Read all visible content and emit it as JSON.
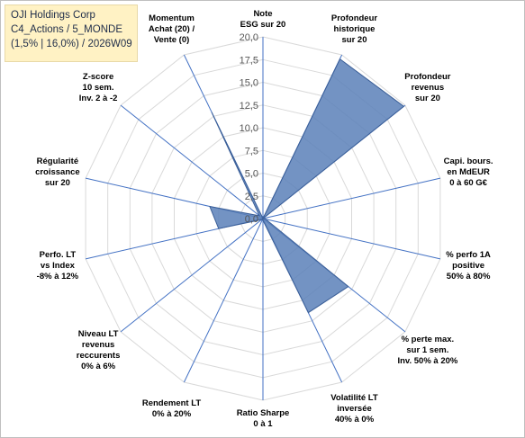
{
  "header": {
    "lines": [
      "OJI Holdings Corp",
      "C4_Actions / 5_MONDE",
      "(1,5% | 16,0%) / 2026W09"
    ]
  },
  "chart_data": {
    "type": "radar",
    "range": [
      0,
      20
    ],
    "tick_labels": [
      "0,0",
      "2,5",
      "5,0",
      "7,5",
      "10,0",
      "12,5",
      "15,0",
      "17,5",
      "20,0"
    ],
    "axes": [
      {
        "label": [
          "Note",
          "ESG sur 20"
        ]
      },
      {
        "label": [
          "Profondeur",
          "historique",
          "sur 20"
        ]
      },
      {
        "label": [
          "Profondeur",
          "revenus",
          "sur 20"
        ]
      },
      {
        "label": [
          "Capi. bours.",
          "en MdEUR",
          "0 à 60 G€"
        ]
      },
      {
        "label": [
          "% perfo 1A",
          "positive",
          "50% à 80%"
        ]
      },
      {
        "label": [
          "% perte max.",
          "sur 1 sem.",
          "Inv. 50% à 20%"
        ]
      },
      {
        "label": [
          "Volatilité LT",
          "inversée",
          "40% à 0%"
        ]
      },
      {
        "label": [
          "Ratio Sharpe",
          "0 à 1"
        ]
      },
      {
        "label": [
          "Rendement LT",
          "0% à 20%"
        ]
      },
      {
        "label": [
          "Niveau LT",
          "revenus",
          "reccurents",
          "0% à 6%"
        ]
      },
      {
        "label": [
          "Perfo. LT",
          "vs Index",
          "-8% à 12%"
        ]
      },
      {
        "label": [
          "Régularité",
          "croissance",
          "sur 20"
        ]
      },
      {
        "label": [
          "Z-score",
          "10 sem.",
          "Inv. 2 à -2"
        ]
      },
      {
        "label": [
          "Momentum",
          "Achat (20) /",
          "Vente (0)"
        ]
      }
    ],
    "series": [
      {
        "values": [
          0.0,
          19.5,
          19.8,
          0.0,
          0.3,
          12.0,
          11.5,
          0.2,
          0.0,
          0.2,
          5.0,
          6.0,
          0.5,
          13.0
        ]
      }
    ],
    "colors": {
      "fill": "#5b80b8",
      "stroke": "#3b5f98",
      "grid": "#d9d9d9",
      "spoke": "#4472c4"
    }
  }
}
